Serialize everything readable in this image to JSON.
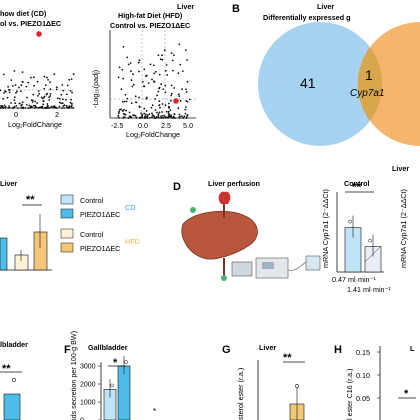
{
  "panels": {
    "B": "B",
    "D": "D",
    "F": "F",
    "G": "G",
    "H": "H"
  },
  "colors": {
    "control": "#bfe4f5",
    "piezo": "#4dbde8",
    "hfd_control": "#fdf2d6",
    "hfd_piezo": "#f4c67a",
    "venn_left": "#a7d3f1",
    "venn_right": "#f5b56d",
    "overlap": "#d8a74d",
    "sig_dot": "#d92b2b",
    "cd_text": "#2fa8d8",
    "hfd_text": "#f2b33f"
  },
  "top": {
    "liver_label": "Liver",
    "volcano_cd": {
      "title_l1": "how diet (CD)",
      "title_l2": "ol vs. PIEZO1ΔEC",
      "x_label": "Log₂FoldChange",
      "x_ticks": [
        "0",
        "2"
      ]
    },
    "volcano_hfd": {
      "title_l1": "High-fat Diet (HFD)",
      "title_l2": "Control vs. PIEZO1ΔEC",
      "x_label": "Log₂FoldChange",
      "y_label": "-Log₁₀(padj)",
      "x_ticks": [
        "-2.5",
        "0.0",
        "2.5",
        "5.0"
      ]
    },
    "venn": {
      "title": "Liver",
      "subtitle": "Differentially expressed g",
      "left_count": "41",
      "overlap_count": "1",
      "overlap_gene": "Cyp7a1"
    }
  },
  "middle": {
    "liver_label": "Liver",
    "sig": "**",
    "legend": [
      {
        "label": "Control",
        "group": ""
      },
      {
        "label": "PIEZO1ΔEC",
        "group": "CD"
      },
      {
        "label": "Control",
        "group": ""
      },
      {
        "label": "PIEZO1ΔEC",
        "group": "HFD"
      }
    ],
    "perfusion_title": "Liver perfusion",
    "cyp_panel": {
      "title": "Control",
      "right_title": "Liver",
      "y_label": "mRNA Cyp7a1 (2⁻ΔΔCt)",
      "y_label_right": "mRNA Cyp7a1 (2⁻ΔΔCt)",
      "sig": "**",
      "x_labels": [
        "0.47 ml·min⁻¹",
        "1.41 ml·min⁻¹"
      ]
    }
  },
  "bottom": {
    "gb_left_label": "lbladder",
    "F": {
      "title": "Gallbladder",
      "y_label": "ids secretion per 100-g BW)",
      "sig": "*"
    },
    "G": {
      "title": "Liver",
      "y_label": "sterol ester (r.a.)",
      "sig": "**"
    },
    "H": {
      "title": "",
      "y_label": "l ester C16 (r.a.)",
      "y_ticks": [
        "0.15",
        "0.10",
        "0.05"
      ],
      "sig": "*",
      "tail": "L"
    }
  },
  "chart_data": [
    {
      "type": "scatter",
      "title": "Liver",
      "xlabel": "Log₂FoldChange",
      "ylabel": "",
      "xlim": [
        -2.5,
        3
      ],
      "ylim": [
        0,
        12
      ],
      "series": [
        {
          "values": [
            [
              -1.8,
              1.2
            ],
            [
              -1.2,
              2.1
            ],
            [
              -0.6,
              1.5
            ],
            [
              0.4,
              1.8
            ],
            [
              1.0,
              2.3
            ],
            [
              1.6,
              1.1
            ],
            [
              0.1,
              2.9
            ]
          ]
        }
      ],
      "highlight": [
        {
          "label": "Cyp7a1",
          "x": 1.2,
          "y": 10.5
        }
      ]
    },
    {
      "type": "scatter",
      "title": "High-fat Diet (HFD)",
      "xlabel": "Log₂FoldChange",
      "ylabel": "-Log₁₀(padj)",
      "xlim": [
        -5,
        5
      ],
      "ylim": [
        0,
        12
      ],
      "series": [
        {
          "values": [
            [
              -3.2,
              5.5
            ],
            [
              -2.1,
              3.4
            ],
            [
              -1.5,
              6.8
            ],
            [
              1.2,
              4.1
            ],
            [
              2.0,
              2.8
            ],
            [
              3.0,
              3.2
            ],
            [
              0.5,
              7.4
            ]
          ]
        }
      ],
      "highlight": [
        {
          "label": "Cyp7a1",
          "x": 1.8,
          "y": 5.0
        }
      ]
    },
    {
      "type": "bar",
      "title": "Liver",
      "categories": [
        "Control CD",
        "PIEZO1ΔEC CD",
        "Control HFD",
        "PIEZO1ΔEC HFD"
      ],
      "values": [
        1.0,
        0.85,
        0.55,
        0.95
      ],
      "ylim": [
        0,
        1.6
      ]
    },
    {
      "type": "bar",
      "title": "Control",
      "categories": [
        "0.47 ml·min⁻¹",
        "1.41 ml·min⁻¹"
      ],
      "values": [
        1.05,
        0.6
      ],
      "ylim": [
        0,
        1.8
      ]
    },
    {
      "type": "bar",
      "title": "Gallbladder",
      "categories": [
        "Control",
        "PIEZO1ΔEC"
      ],
      "values": [
        1700,
        3000
      ],
      "ylim": [
        0,
        4000
      ],
      "yticks": [
        "3000",
        "2000",
        "1000",
        "0"
      ]
    },
    {
      "type": "bar",
      "title": "Liver",
      "categories": [
        "Control",
        "PIEZO1ΔEC"
      ],
      "values": [
        0.1,
        0.25
      ],
      "ylim": [
        0,
        0.4
      ]
    }
  ]
}
